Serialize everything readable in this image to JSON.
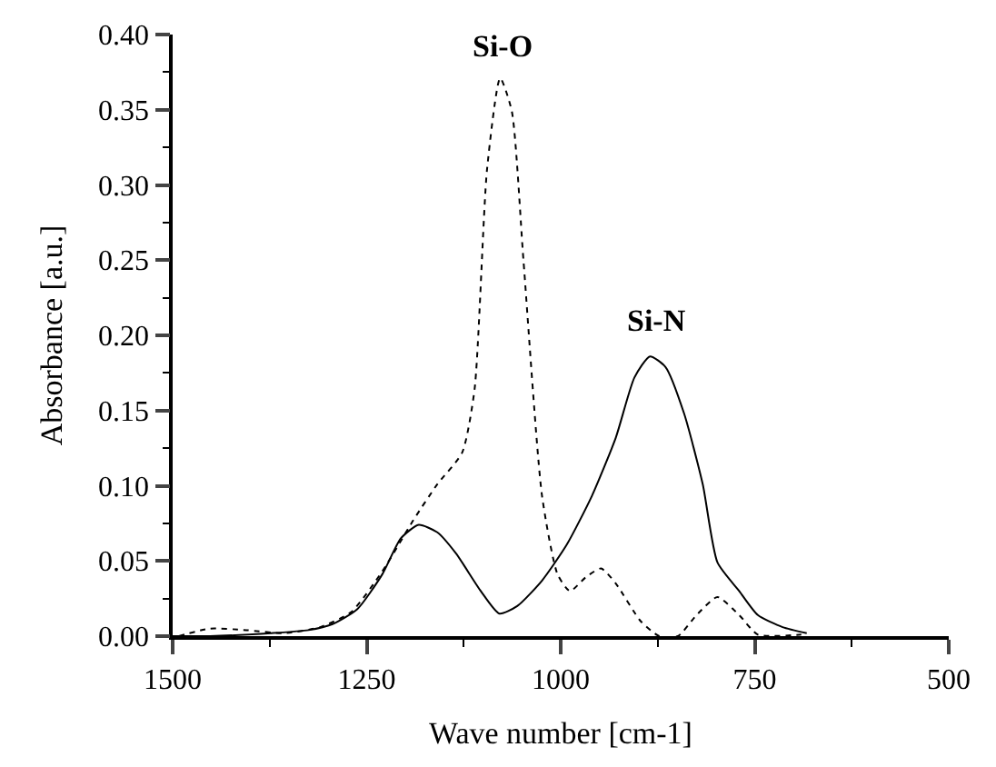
{
  "chart_data": {
    "type": "line",
    "xlabel": "Wave number [cm-1]",
    "ylabel": "Absorbance [a.u.]",
    "xlim": [
      1500,
      500
    ],
    "xticks": [
      1500,
      1250,
      1000,
      750,
      500
    ],
    "ylim": [
      0,
      0.4
    ],
    "yticks": [
      {
        "value": 0,
        "label": "0.00"
      },
      {
        "value": 0.05,
        "label": "0.05"
      },
      {
        "value": 0.1,
        "label": "0.10"
      },
      {
        "value": 0.15,
        "label": "0.15"
      },
      {
        "value": 0.2,
        "label": "0.20"
      },
      {
        "value": 0.25,
        "label": "0.25"
      },
      {
        "value": 0.3,
        "label": "0.30"
      },
      {
        "value": 0.35,
        "label": "0.35"
      },
      {
        "value": 0.4,
        "label": "0.40"
      }
    ],
    "marker": "none",
    "series": [
      {
        "color": "#000000",
        "line_style": "solid",
        "x": [
          1500,
          1452,
          1373,
          1325,
          1294,
          1262,
          1230,
          1206,
          1183,
          1159,
          1135,
          1103,
          1079,
          1056,
          1024,
          992,
          960,
          929,
          905,
          885,
          865,
          841,
          817,
          798,
          770,
          746,
          714,
          683
        ],
        "values": [
          0,
          0,
          0.002,
          0.004,
          0.008,
          0.018,
          0.041,
          0.065,
          0.074,
          0.069,
          0.055,
          0.03,
          0.015,
          0.02,
          0.037,
          0.061,
          0.093,
          0.132,
          0.172,
          0.186,
          0.179,
          0.148,
          0.101,
          0.049,
          0.03,
          0.014,
          0.006,
          0.002
        ]
      },
      {
        "color": "#000000",
        "line_style": "dotted",
        "x": [
          1492,
          1452,
          1405,
          1357,
          1310,
          1270,
          1230,
          1190,
          1159,
          1127,
          1111,
          1095,
          1078,
          1063,
          1048,
          1024,
          1004,
          988,
          968,
          948,
          929,
          897,
          873,
          849,
          825,
          798,
          770,
          746,
          690
        ],
        "values": [
          0,
          0.005,
          0.004,
          0.002,
          0.006,
          0.016,
          0.043,
          0.077,
          0.101,
          0.122,
          0.164,
          0.31,
          0.371,
          0.349,
          0.25,
          0.093,
          0.041,
          0.03,
          0.039,
          0.045,
          0.035,
          0.01,
          0,
          0,
          0.014,
          0.026,
          0.014,
          0.001,
          0.001
        ]
      }
    ],
    "annotations": [
      "Si-O",
      "Si-N"
    ]
  }
}
